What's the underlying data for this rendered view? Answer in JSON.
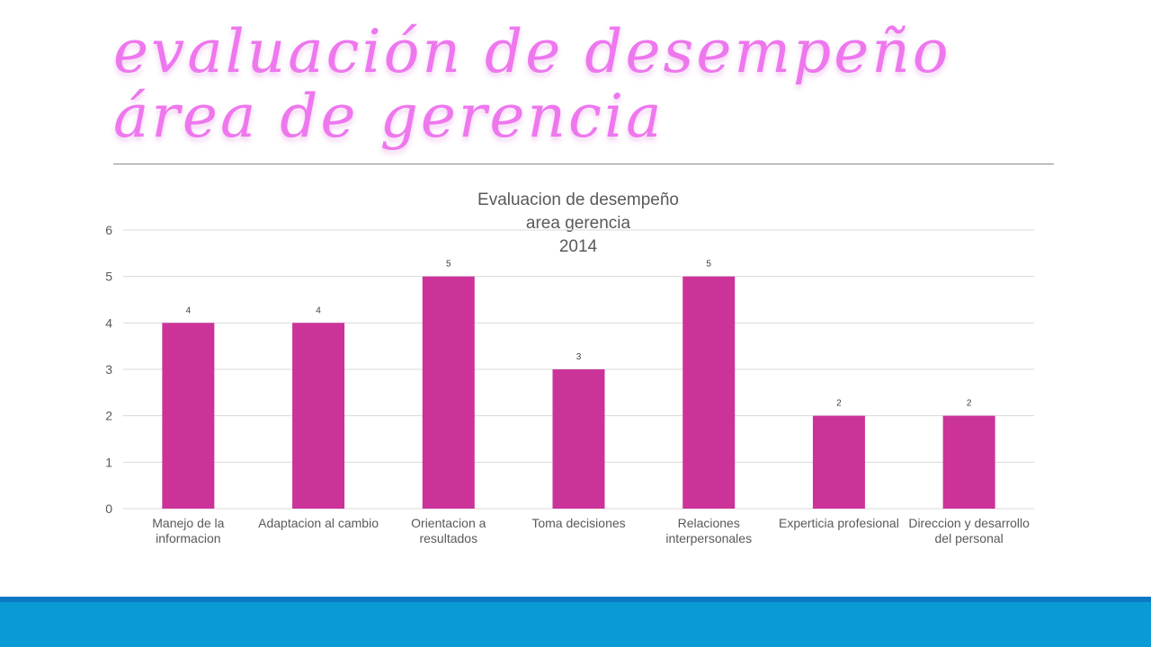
{
  "slide": {
    "title": "evaluación de desempeño área de gerencia"
  },
  "chart_data": {
    "type": "bar",
    "title_lines": [
      "Evaluacion de desempeño",
      "area gerencia",
      "2014"
    ],
    "categories": [
      [
        "Manejo de la",
        "informacion"
      ],
      [
        "Adaptacion al cambio"
      ],
      [
        "Orientacion a",
        "resultados"
      ],
      [
        "Toma decisiones"
      ],
      [
        "Relaciones",
        "interpersonales"
      ],
      [
        "Experticia profesional"
      ],
      [
        "Direccion y desarrollo",
        "del personal"
      ]
    ],
    "values": [
      4,
      4,
      5,
      3,
      5,
      2,
      2
    ],
    "data_labels": [
      "4",
      "4",
      "5",
      "3",
      "5",
      "2",
      "2"
    ],
    "yticks": [
      "0",
      "1",
      "2",
      "3",
      "4",
      "5",
      "6"
    ],
    "ylim": [
      0,
      6
    ],
    "xlabel": "",
    "ylabel": "",
    "grid": true,
    "legend": "none",
    "bar_color": "#cc3399",
    "grid_color": "#d9d9d9",
    "text_color": "#595959"
  }
}
